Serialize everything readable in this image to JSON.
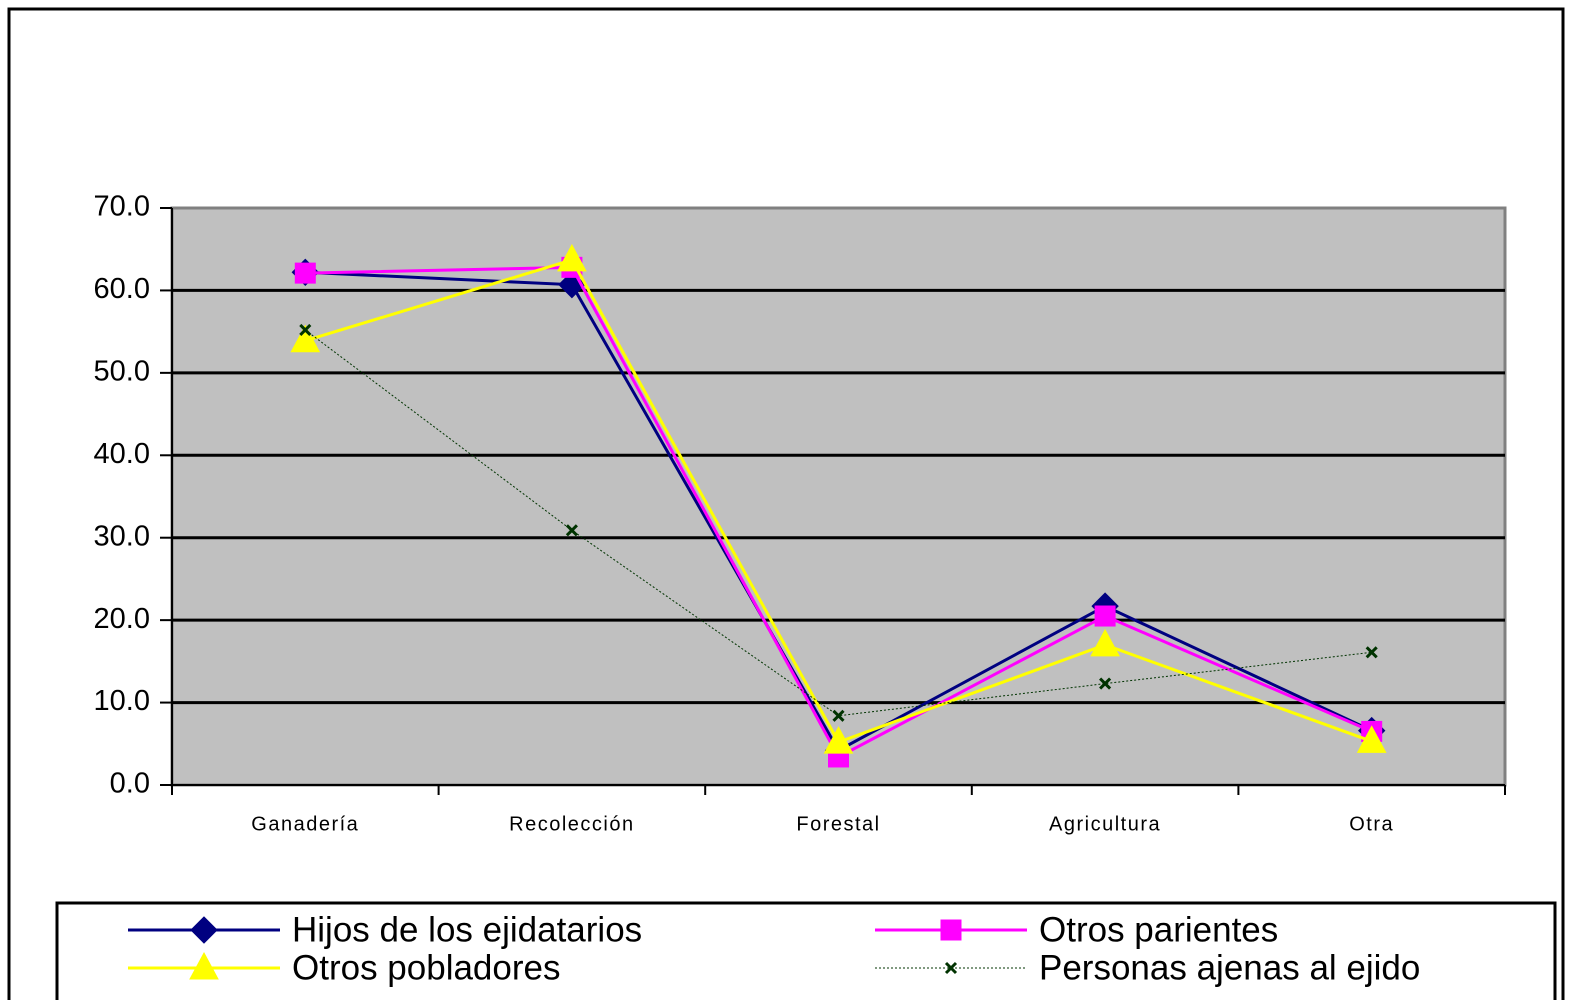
{
  "chart_data": {
    "type": "line",
    "categories": [
      "Ganadería",
      "Recolección",
      "Forestal",
      "Agricultura",
      "Otra"
    ],
    "series": [
      {
        "name": "Hijos de los ejidatarios",
        "color": "#000080",
        "marker": "diamond",
        "line": "solid",
        "values": [
          62.2,
          60.7,
          4.2,
          21.7,
          6.6
        ]
      },
      {
        "name": "Otros parientes",
        "color": "#ff00ff",
        "marker": "square",
        "line": "solid",
        "values": [
          62.1,
          62.8,
          3.4,
          20.5,
          6.5
        ]
      },
      {
        "name": "Otros pobladores",
        "color": "#ffff00",
        "marker": "triangle",
        "line": "solid",
        "values": [
          53.9,
          63.7,
          5.2,
          17.0,
          5.3
        ]
      },
      {
        "name": "Personas ajenas al ejido",
        "color": "#003300",
        "marker": "x",
        "line": "dotted",
        "values": [
          55.2,
          30.9,
          8.4,
          12.3,
          16.1
        ]
      }
    ],
    "ylim": [
      0,
      70
    ],
    "yticks": [
      {
        "value": 0,
        "label": "0.0"
      },
      {
        "value": 10,
        "label": "10.0"
      },
      {
        "value": 20,
        "label": "20.0"
      },
      {
        "value": 30,
        "label": "30.0"
      },
      {
        "value": 40,
        "label": "40.0"
      },
      {
        "value": 50,
        "label": "50.0"
      },
      {
        "value": 60,
        "label": "60.0"
      },
      {
        "value": 70,
        "label": "70.0"
      }
    ],
    "grid": true,
    "legend": "bottom"
  }
}
